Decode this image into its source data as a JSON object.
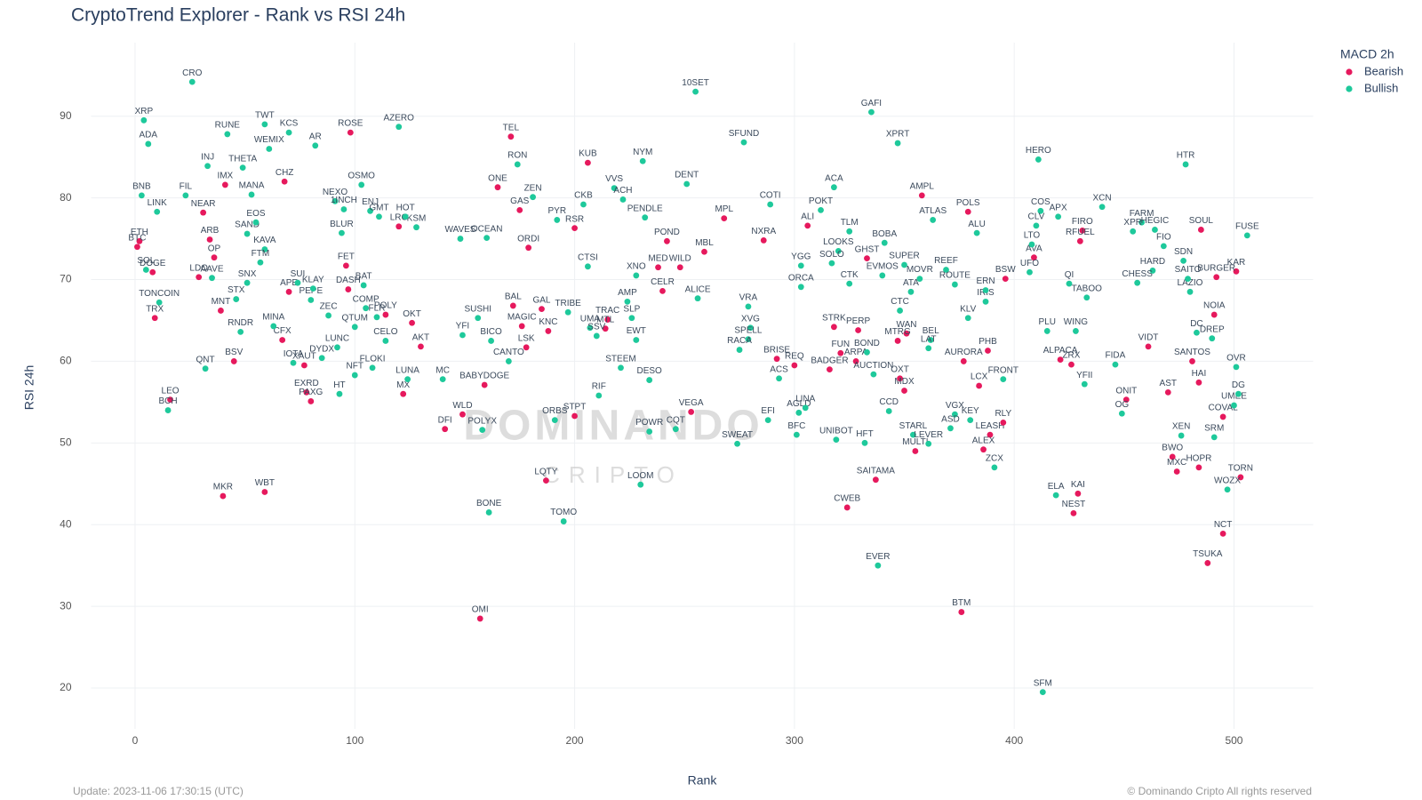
{
  "chart_data": {
    "type": "scatter",
    "title": "CryptoTrend Explorer - Rank vs RSI 24h",
    "x_label": "Rank",
    "y_label": "RSI 24h",
    "legend_title": "MACD 2h",
    "legend_position": "top-right",
    "grid": true,
    "xlim": [
      -20,
      536
    ],
    "xticks": [
      0,
      100,
      200,
      300,
      400,
      500
    ],
    "ylim": [
      15,
      99
    ],
    "yticks": [
      20,
      30,
      40,
      50,
      60,
      70,
      80,
      90
    ],
    "watermark": {
      "title": "DOMINANDO",
      "subtitle": "CRIPTO"
    },
    "update_note": "Update: 2023-11-06 17:30:15 (UTC)",
    "copyright": "© Dominando Cripto All rights reserved",
    "series": [
      {
        "name": "Bearish",
        "color": "#e6195d",
        "labels": [
          "CHZ",
          "ROSE",
          "TEL",
          "KUB",
          "ONE",
          "GAS",
          "AMPL",
          "MPL",
          "ALI",
          "SOUL",
          "KAR",
          "POLS",
          "AVA",
          "BSW",
          "FIRO",
          "RFUEL",
          "NXRA",
          "GHST",
          "POND",
          "MBL",
          "RSR",
          "ORDI",
          "LRC",
          "IMX",
          "NEAR",
          "ARB",
          "OP",
          "ETH",
          "BTC",
          "DOGE",
          "TRX",
          "LDO",
          "MNT",
          "CFX",
          "BSV",
          "XAUT",
          "EXRD",
          "PAXG",
          "FET",
          "DASH",
          "AKT",
          "MX",
          "OKT",
          "POLY",
          "MAGIC",
          "KNC",
          "LSK",
          "BABYDOGE",
          "BAL",
          "GAL",
          "WLD",
          "DFI",
          "STPT",
          "LQTY",
          "OMI",
          "VEGA",
          "SAITAMA",
          "CWEB",
          "MULTI",
          "LEASH",
          "RLY",
          "ALEX",
          "BTM",
          "KAI",
          "NEST",
          "TORN",
          "NCT",
          "TSUKA",
          "BWO",
          "MXC",
          "HOPR",
          "COVAL",
          "HAI",
          "SANTOS",
          "AST",
          "ONIT",
          "AURORA",
          "PHB",
          "LCX",
          "OXT",
          "MDX",
          "ALPACA",
          "ZRX",
          "BURGER",
          "NOIA",
          "VIDT",
          "WILD",
          "TRAC",
          "MTL",
          "APE",
          "BRISE",
          "REQ",
          "FUN",
          "ARPA",
          "BADGER",
          "STRK",
          "WAN",
          "MTRG",
          "PERP",
          "CELR",
          "MKR",
          "WBT",
          "LEO",
          "MED"
        ],
        "x": [
          68,
          98,
          171,
          206,
          165,
          175,
          358,
          268,
          306,
          485,
          501,
          379,
          409,
          396,
          431,
          430,
          286,
          333,
          242,
          259,
          200,
          179,
          120,
          41,
          31,
          34,
          36,
          2,
          1,
          8,
          9,
          29,
          39,
          67,
          45,
          77,
          78,
          80,
          96,
          97,
          130,
          122,
          126,
          114,
          176,
          188,
          178,
          159,
          172,
          185,
          149,
          141,
          200,
          187,
          157,
          253,
          337,
          324,
          355,
          389,
          395,
          386,
          376,
          429,
          427,
          503,
          495,
          488,
          472,
          474,
          484,
          495,
          484,
          481,
          470,
          451,
          377,
          388,
          384,
          348,
          350,
          421,
          426,
          492,
          491,
          461,
          248,
          215,
          214,
          70,
          292,
          300,
          321,
          328,
          316,
          318,
          351,
          347,
          329,
          240,
          40,
          59,
          16,
          238
        ],
        "values": [
          82,
          88,
          87.5,
          84.3,
          81.3,
          78.5,
          80.3,
          77.5,
          76.6,
          76.1,
          71,
          78.3,
          72.7,
          70.1,
          76,
          74.7,
          74.8,
          72.6,
          74.7,
          73.4,
          76.3,
          73.9,
          76.5,
          81.6,
          78.2,
          74.9,
          72.7,
          74.7,
          74,
          70.9,
          65.3,
          70.3,
          66.2,
          62.6,
          60,
          59.5,
          56.2,
          55.1,
          71.7,
          68.8,
          61.8,
          56,
          64.7,
          65.7,
          64.3,
          63.7,
          61.7,
          57.1,
          66.8,
          66.4,
          53.5,
          51.7,
          53.3,
          45.4,
          28.5,
          53.8,
          45.5,
          42.1,
          49,
          51,
          52.5,
          49.2,
          29.3,
          43.8,
          41.4,
          45.8,
          38.9,
          35.3,
          48.3,
          46.5,
          47,
          53.2,
          57.4,
          60,
          56.2,
          55.3,
          60,
          61.3,
          57,
          57.9,
          56.4,
          60.2,
          59.6,
          70.3,
          65.7,
          61.8,
          71.5,
          65.1,
          64,
          68.5,
          60.3,
          59.5,
          61,
          60,
          59,
          64.2,
          63.4,
          62.5,
          63.8,
          68.6,
          43.5,
          44,
          55.3,
          71.5
        ]
      },
      {
        "name": "Bullish",
        "color": "#1ec99b",
        "labels": [
          "XRP",
          "CRO",
          "ADA",
          "TWT",
          "KCS",
          "AR",
          "AZERO",
          "WEMIX",
          "THETA",
          "INJ",
          "MANA",
          "OSMO",
          "BNB",
          "FIL",
          "LINK",
          "SAND",
          "EOS",
          "RUNE",
          "RON",
          "NYM",
          "10SET",
          "SFUND",
          "GAFI",
          "XPRT",
          "HERO",
          "HTR",
          "VVS",
          "DENT",
          "ZEN",
          "CKB",
          "ACH",
          "COTI",
          "ACA",
          "POKT",
          "XCN",
          "COS",
          "APX",
          "FARM",
          "FUSE",
          "SDN",
          "ATLAS",
          "ALU",
          "CLV",
          "LTO",
          "UFO",
          "TLM",
          "BOBA",
          "SUPER",
          "EVMOS",
          "REEF",
          "MOVR",
          "LOOKS",
          "SOLO",
          "YGG",
          "PENDLE",
          "PYR",
          "CTSI",
          "OCEAN",
          "WAVES",
          "KSM",
          "HOT",
          "ENJ",
          "GMT",
          "NEXO",
          "1INCH",
          "BLUR",
          "KAVA",
          "SOL",
          "TONCOIN",
          "AAVE",
          "STX",
          "RNDR",
          "SNX",
          "FTM",
          "MINA",
          "QNT",
          "IOTA",
          "LUNC",
          "HT",
          "NFT",
          "FLOKI",
          "DYDX",
          "ZEC",
          "QTUM",
          "COMP",
          "BAT",
          "CELO",
          "LUNA",
          "FLR",
          "YFI",
          "SUSHI",
          "BICO",
          "CANTO",
          "MC",
          "POLYX",
          "ORBS",
          "RIF",
          "BONE",
          "TOMO",
          "LOOM",
          "POWR",
          "CQT",
          "EFI",
          "SWEAT",
          "AGLD",
          "BFC",
          "UNIBOT",
          "HFT",
          "EVER",
          "CCD",
          "STARL",
          "LEVER",
          "VGX",
          "ASD",
          "KEY",
          "ZCX",
          "SFM",
          "ELA",
          "WOZX",
          "XEN",
          "SRM",
          "UMEE",
          "DG",
          "OVR",
          "OG",
          "FIDA",
          "FRONT",
          "AUCTION",
          "BOND",
          "YFII",
          "WING",
          "PLU",
          "QI",
          "TABOO",
          "LAZIO",
          "DC",
          "DREP",
          "SAITO",
          "HARD",
          "CHESS",
          "FIO",
          "HEGIC",
          "XPR",
          "ALICE",
          "XNO",
          "AMP",
          "SLP",
          "UMA",
          "SSV",
          "EWT",
          "STEEM",
          "DESO",
          "TRIBE",
          "PEPE",
          "SUI",
          "KLAY",
          "VRA",
          "XVG",
          "SPELL",
          "RACA",
          "ACS",
          "BEL",
          "LAT",
          "KLV",
          "IRIS",
          "ORCA",
          "CTK",
          "ERN",
          "ROUTE",
          "ATA",
          "CTC",
          "BCH",
          "LINA"
        ],
        "x": [
          4,
          26,
          6,
          59,
          70,
          82,
          120,
          61,
          49,
          33,
          53,
          103,
          3,
          23,
          10,
          51,
          55,
          42,
          174,
          231,
          255,
          277,
          335,
          347,
          411,
          478,
          218,
          251,
          181,
          204,
          222,
          289,
          318,
          312,
          440,
          412,
          420,
          458,
          506,
          477,
          363,
          383,
          410,
          408,
          407,
          325,
          341,
          350,
          340,
          369,
          357,
          320,
          317,
          303,
          232,
          192,
          206,
          160,
          148,
          128,
          123,
          107,
          111,
          91,
          95,
          94,
          59,
          5,
          11,
          35,
          46,
          48,
          51,
          57,
          63,
          32,
          72,
          92,
          93,
          100,
          108,
          85,
          88,
          100,
          105,
          104,
          114,
          124,
          110,
          149,
          156,
          162,
          170,
          140,
          158,
          191,
          211,
          161,
          195,
          230,
          234,
          246,
          288,
          274,
          302,
          301,
          319,
          332,
          338,
          343,
          354,
          361,
          373,
          371,
          380,
          391,
          413,
          419,
          497,
          476,
          491,
          500,
          502,
          501,
          449,
          446,
          395,
          336,
          333,
          432,
          428,
          415,
          425,
          433,
          480,
          483,
          490,
          479,
          463,
          456,
          468,
          464,
          454,
          256,
          228,
          224,
          226,
          207,
          210,
          228,
          221,
          234,
          197,
          80,
          74,
          81,
          279,
          280,
          279,
          275,
          293,
          362,
          361,
          379,
          387,
          303,
          325,
          387,
          373,
          353,
          348,
          15,
          305
        ],
        "values": [
          89.5,
          94.2,
          86.6,
          89,
          88,
          86.4,
          88.7,
          86,
          83.7,
          83.9,
          80.4,
          81.6,
          80.3,
          80.3,
          78.3,
          75.6,
          77,
          87.8,
          84.1,
          84.5,
          93,
          86.8,
          90.5,
          86.7,
          84.7,
          84.1,
          81.2,
          81.7,
          80.1,
          79.2,
          79.8,
          79.2,
          81.3,
          78.5,
          78.9,
          78.4,
          77.7,
          77,
          75.4,
          72.3,
          77.3,
          75.7,
          76.6,
          74.3,
          70.9,
          75.9,
          74.5,
          71.8,
          70.5,
          71.2,
          70.1,
          73.5,
          72,
          71.7,
          77.6,
          77.3,
          71.6,
          75.1,
          75,
          76.4,
          77.7,
          78.4,
          77.7,
          79.6,
          78.6,
          75.7,
          73.7,
          71.2,
          67.2,
          70.2,
          67.6,
          63.6,
          69.6,
          72.1,
          64.3,
          59.1,
          59.8,
          61.7,
          56,
          58.3,
          59.2,
          60.4,
          65.6,
          64.2,
          66.5,
          69.3,
          62.5,
          57.8,
          65.4,
          63.2,
          65.3,
          62.5,
          60,
          57.8,
          51.6,
          52.8,
          55.8,
          41.5,
          40.4,
          44.9,
          51.4,
          51.7,
          52.8,
          49.9,
          53.7,
          51,
          50.4,
          50,
          35,
          53.9,
          51,
          49.9,
          53.5,
          51.8,
          52.8,
          47,
          19.5,
          43.6,
          44.3,
          50.9,
          50.7,
          54.6,
          56,
          59.3,
          53.6,
          59.6,
          57.8,
          58.4,
          61.1,
          57.2,
          63.7,
          63.7,
          69.5,
          67.8,
          68.5,
          63.5,
          62.8,
          70.1,
          71.1,
          69.6,
          74.1,
          76.1,
          75.9,
          67.7,
          70.5,
          67.3,
          65.3,
          64.1,
          63.1,
          62.6,
          59.2,
          57.7,
          66,
          67.5,
          69.6,
          68.9,
          66.7,
          64.1,
          62.7,
          61.4,
          57.9,
          62.6,
          61.6,
          65.3,
          67.3,
          69.1,
          69.5,
          68.7,
          69.4,
          68.5,
          66.2,
          54,
          54.3
        ]
      }
    ]
  }
}
